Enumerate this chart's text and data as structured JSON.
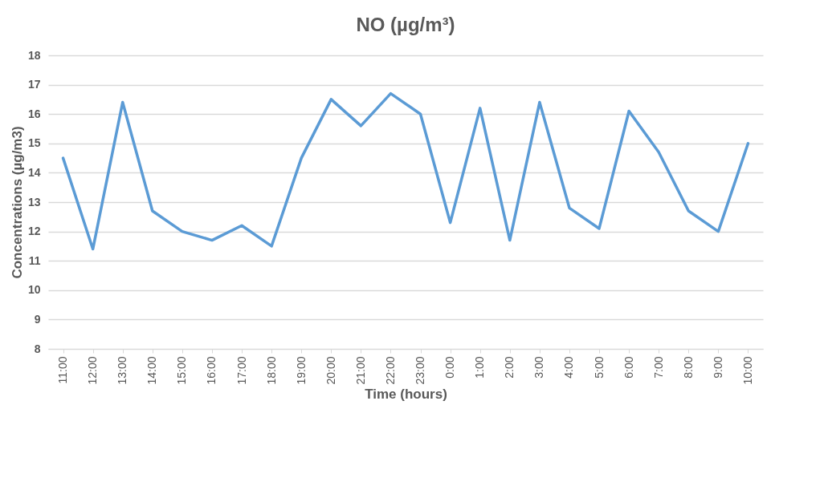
{
  "chart_data": {
    "type": "line",
    "title": "NO (µg/m³)",
    "xlabel": "Time (hours)",
    "ylabel": "Concentrations (µg/m3)",
    "categories": [
      "11:00",
      "12:00",
      "13:00",
      "14:00",
      "15:00",
      "16:00",
      "17:00",
      "18:00",
      "19:00",
      "20:00",
      "21:00",
      "22:00",
      "23:00",
      "0:00",
      "1:00",
      "2:00",
      "3:00",
      "4:00",
      "5:00",
      "6:00",
      "7:00",
      "8:00",
      "9:00",
      "10:00"
    ],
    "series": [
      {
        "color": "#5b9bd5",
        "values": [
          14.5,
          11.4,
          16.4,
          12.7,
          12.0,
          11.7,
          12.2,
          11.5,
          14.5,
          16.5,
          15.6,
          16.7,
          16.0,
          12.3,
          16.2,
          11.7,
          16.4,
          12.8,
          12.1,
          16.1,
          14.7,
          12.7,
          12.0,
          15.0
        ]
      }
    ],
    "ylim": [
      8,
      18
    ],
    "yticks": [
      8,
      9,
      10,
      11,
      12,
      13,
      14,
      15,
      16,
      17,
      18
    ],
    "grid": "y",
    "marker": "none",
    "line_style": "solid"
  }
}
